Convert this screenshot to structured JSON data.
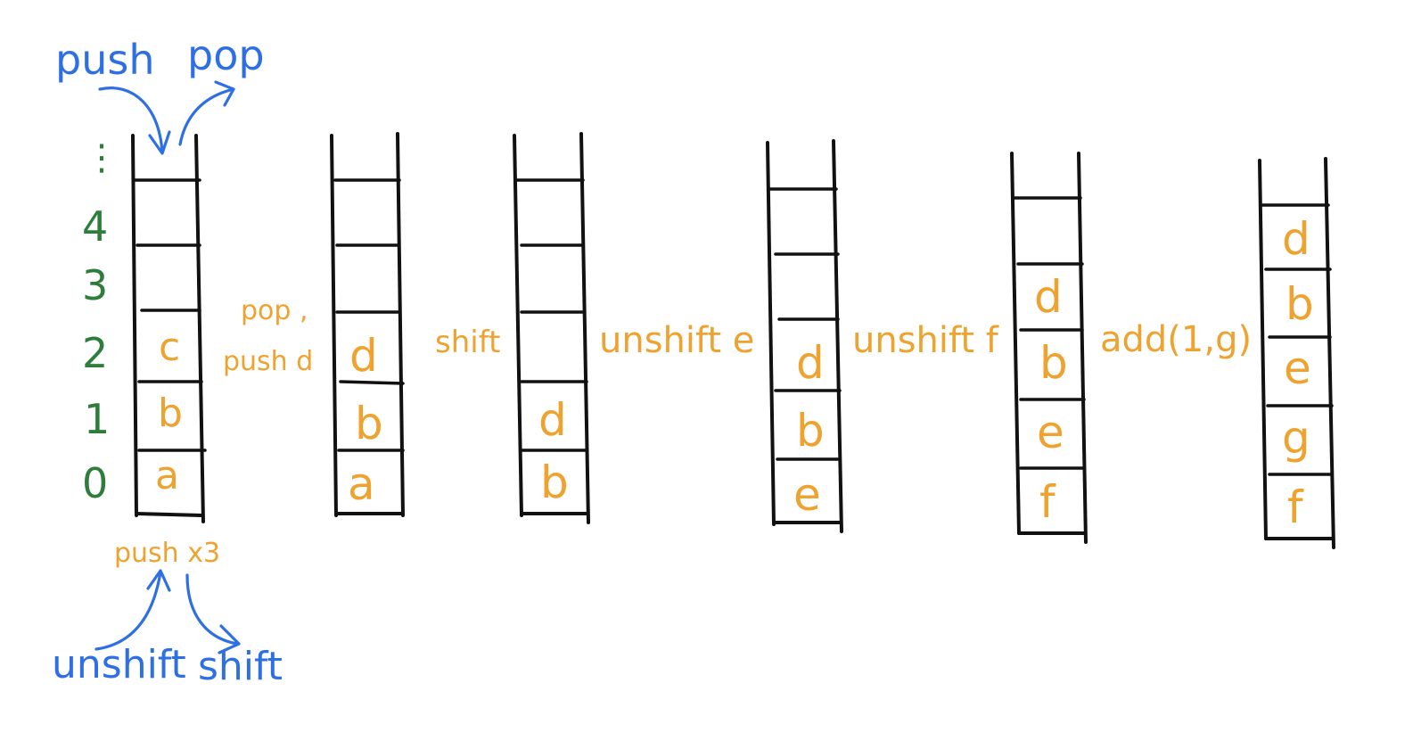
{
  "colors": {
    "blue": "#2f6fe4",
    "orange": "#eea330",
    "green": "#2e7d3a",
    "ink": "#111111"
  },
  "top_ops": {
    "push": "push",
    "pop": "pop"
  },
  "bottom_ops": {
    "unshift": "unshift",
    "shift": "shift"
  },
  "index_labels": {
    "dots": "⋮",
    "i4": "4",
    "i3": "3",
    "i2": "2",
    "i1": "1",
    "i0": "0"
  },
  "steps": {
    "s1": "push x3",
    "s2_line1": "pop ,",
    "s2_line2": "push d",
    "s3": "shift",
    "s4": "unshift e",
    "s5": "unshift f",
    "s6": "add(1,g)"
  },
  "stacks": {
    "st1": {
      "c2": "c",
      "c1": "b",
      "c0": "a"
    },
    "st2": {
      "c2": "d",
      "c1": "b",
      "c0": "a"
    },
    "st3": {
      "c1": "d",
      "c0": "b"
    },
    "st4": {
      "c2": "d",
      "c1": "b",
      "c0": "e"
    },
    "st5": {
      "c3": "d",
      "c2": "b",
      "c1": "e",
      "c0": "f"
    },
    "st6": {
      "c4": "d",
      "c3": "b",
      "c2": "e",
      "c1": "g",
      "c0": "f"
    }
  }
}
